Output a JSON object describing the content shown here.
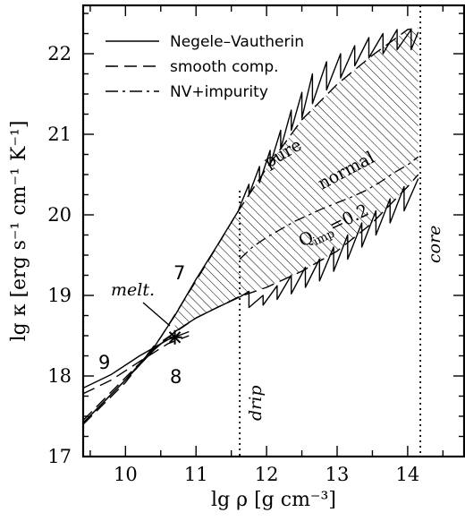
{
  "chart_data": {
    "type": "line",
    "xlabel": "lg ρ [g cm⁻³]",
    "ylabel": "lg κ [erg s⁻¹ cm⁻¹ K⁻¹]",
    "xlim": [
      9.4,
      14.8
    ],
    "ylim": [
      17.0,
      22.6
    ],
    "xticks": [
      "10",
      "11",
      "12",
      "13",
      "14"
    ],
    "yticks": [
      "17",
      "18",
      "19",
      "20",
      "21",
      "22"
    ],
    "legend": {
      "placement": "top-left",
      "entries": [
        {
          "label": "Negele–Vautherin",
          "style": "solid"
        },
        {
          "label": "smooth comp.",
          "style": "dashed"
        },
        {
          "label": "NV+impurity",
          "style": "dashdot"
        }
      ]
    },
    "vlines": [
      {
        "x": 11.62,
        "label": "drip"
      },
      {
        "x": 14.18,
        "label": "core"
      }
    ],
    "annotations": {
      "pure": "pure",
      "normal": "normal",
      "qimp_main": "Q",
      "qimp_sub": "imp",
      "qimp_val": "=0.2",
      "melt": "melt.",
      "n7": "7",
      "n8": "8",
      "n9": "9"
    },
    "melt_point": {
      "x": 10.7,
      "y": 18.48
    },
    "series": [
      {
        "name": "pure-NV",
        "style": "solid",
        "x": [
          9.4,
          10.0,
          10.4,
          10.7,
          11.0,
          11.3,
          11.6,
          11.62,
          11.75,
          11.75,
          11.9,
          11.9,
          12.05,
          12.05,
          12.2,
          12.2,
          12.35,
          12.35,
          12.5,
          12.5,
          12.65,
          12.65,
          12.85,
          12.85,
          13.05,
          13.05,
          13.25,
          13.25,
          13.45,
          13.45,
          13.65,
          13.65,
          13.85,
          13.85,
          14.05,
          14.05,
          14.15
        ],
        "y": [
          17.42,
          17.95,
          18.35,
          18.75,
          19.2,
          19.62,
          20.05,
          20.1,
          20.38,
          20.25,
          20.6,
          20.4,
          20.8,
          20.62,
          21.05,
          20.82,
          21.3,
          21.05,
          21.52,
          21.2,
          21.75,
          21.38,
          21.9,
          21.55,
          22.0,
          21.7,
          22.1,
          21.85,
          22.2,
          21.95,
          22.25,
          22.0,
          22.3,
          22.05,
          22.3,
          22.05,
          22.27
        ]
      },
      {
        "name": "pure-smooth",
        "style": "dashed",
        "x": [
          9.4,
          10.0,
          10.5,
          11.0,
          11.6,
          12.0,
          12.5,
          13.0,
          13.5,
          14.0,
          14.15
        ],
        "y": [
          17.4,
          17.92,
          18.48,
          19.18,
          20.05,
          20.58,
          21.18,
          21.62,
          21.98,
          22.3,
          22.32
        ]
      },
      {
        "name": "normal-NV",
        "style": "solid",
        "x": [
          9.4,
          10.0,
          10.4,
          10.7,
          11.0,
          11.3,
          11.62,
          11.75,
          11.75,
          11.95,
          11.95,
          12.15,
          12.15,
          12.35,
          12.35,
          12.55,
          12.55,
          12.75,
          12.75,
          12.95,
          12.95,
          13.15,
          13.15,
          13.35,
          13.35,
          13.55,
          13.55,
          13.75,
          13.75,
          13.95,
          13.95,
          14.15
        ],
        "y": [
          17.42,
          17.95,
          18.32,
          18.55,
          18.72,
          18.85,
          18.98,
          19.05,
          18.85,
          19.0,
          18.88,
          19.12,
          18.95,
          19.25,
          19.02,
          19.35,
          19.1,
          19.45,
          19.18,
          19.6,
          19.3,
          19.75,
          19.45,
          19.9,
          19.6,
          20.05,
          19.75,
          20.2,
          19.9,
          20.35,
          20.05,
          20.45
        ]
      },
      {
        "name": "normal-smooth",
        "style": "dashed",
        "x": [
          9.4,
          10.0,
          10.5,
          11.0,
          11.6,
          12.0,
          12.5,
          13.0,
          13.5,
          14.0,
          14.15
        ],
        "y": [
          17.45,
          17.98,
          18.42,
          18.72,
          18.98,
          19.1,
          19.3,
          19.55,
          19.9,
          20.35,
          20.5
        ]
      },
      {
        "name": "impurity",
        "style": "dashdot",
        "x": [
          11.62,
          11.8,
          12.0,
          12.2,
          12.4,
          12.6,
          12.8,
          13.0,
          13.2,
          13.4,
          13.6,
          13.8,
          14.0,
          14.15
        ],
        "y": [
          19.45,
          19.6,
          19.72,
          19.82,
          19.92,
          20.0,
          20.08,
          20.15,
          20.22,
          20.3,
          20.4,
          20.52,
          20.62,
          20.72
        ]
      },
      {
        "name": "crust-9",
        "style": "solid",
        "x": [
          9.4,
          9.8,
          10.2,
          10.6,
          10.9
        ],
        "y": [
          17.85,
          18.02,
          18.25,
          18.45,
          18.55
        ]
      },
      {
        "name": "crust-8",
        "style": "dashed",
        "x": [
          9.4,
          9.8,
          10.2,
          10.6,
          10.9
        ],
        "y": [
          17.78,
          17.95,
          18.18,
          18.4,
          18.5
        ]
      }
    ],
    "hatch_region": {
      "upper_series": "pure-smooth",
      "lower_series": "normal-smooth",
      "x_from": 10.7,
      "x_to": 14.15
    }
  }
}
